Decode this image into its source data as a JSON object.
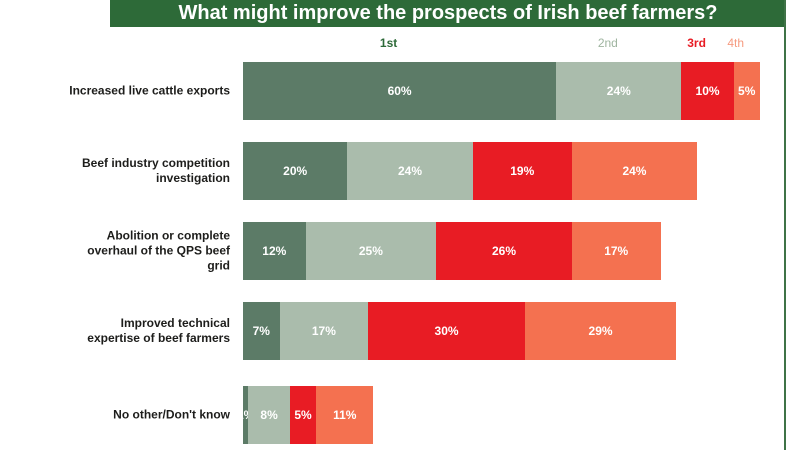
{
  "page": {
    "background": "#ffffff"
  },
  "header": {
    "title": "What might improve the prospects of Irish beef farmers?",
    "background": "#2d6a38",
    "text_color": "#ffffff"
  },
  "legend": {
    "items": [
      {
        "label": "1st",
        "color": "#2d6a38",
        "bold": true
      },
      {
        "label": "2nd",
        "color": "#9fb5a0",
        "bold": false
      },
      {
        "label": "3rd",
        "color": "#e81c24",
        "bold": true
      },
      {
        "label": "4th",
        "color": "#f69b80",
        "bold": false
      }
    ]
  },
  "chart_data": {
    "type": "bar",
    "variant": "horizontal-stacked",
    "title": "What might improve the prospects of Irish beef farmers?",
    "legend_position": "top",
    "value_suffix": "%",
    "axis": {
      "x_visible": false,
      "y_visible": false,
      "grid": false
    },
    "categories": [
      "Increased live cattle exports",
      "Beef industry competition investigation",
      "Abolition or complete overhaul of the QPS beef grid",
      "Improved technical expertise of beef farmers",
      "No other/Don't know"
    ],
    "category_label_lines": [
      [
        "Increased live cattle exports"
      ],
      [
        "Beef industry competition",
        "investigation"
      ],
      [
        "Abolition or complete",
        "overhaul of the QPS beef",
        "grid"
      ],
      [
        "Improved technical",
        "expertise of beef farmers"
      ],
      [
        "No other/Don't know"
      ]
    ],
    "series": [
      {
        "name": "1st",
        "color": "#5c7b67",
        "values": [
          60,
          20,
          12,
          7,
          1
        ]
      },
      {
        "name": "2nd",
        "color": "#aabcac",
        "values": [
          24,
          24,
          25,
          17,
          8
        ]
      },
      {
        "name": "3rd",
        "color": "#e81c24",
        "values": [
          10,
          19,
          26,
          30,
          5
        ]
      },
      {
        "name": "4th",
        "color": "#f47150",
        "values": [
          5,
          24,
          17,
          29,
          11
        ]
      }
    ]
  }
}
